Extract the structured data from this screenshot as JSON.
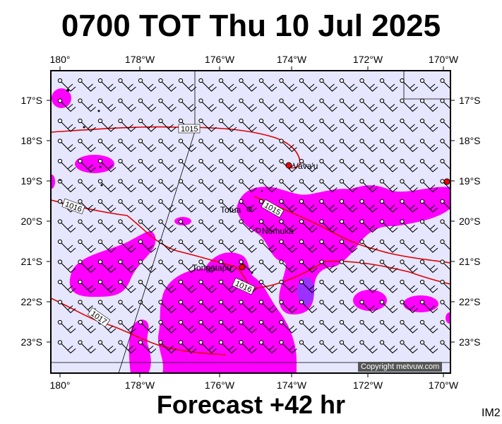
{
  "title": "0700 TOT Thu 10 Jul 2025",
  "subtitle": "Forecast +42 hr",
  "code": "IM2",
  "copyright": "Copyright metvuw.com",
  "lon_labels": [
    "180°",
    "178°W",
    "176°W",
    "174°W",
    "172°W",
    "170°W"
  ],
  "lat_labels": [
    "17°S",
    "18°S",
    "19°S",
    "20°S",
    "21°S",
    "22°S",
    "23°S"
  ],
  "places": [
    "Vava'u",
    "Tofua",
    "Nomuka",
    "Tongatapu"
  ],
  "isobars": [
    "1015",
    "1016",
    "1015",
    "1016",
    "1017"
  ],
  "colors": {
    "ocean": "#e6e6ff",
    "precip": "#ff00ff",
    "heavy_precip": "#9b30ff",
    "isobar": "#e00000"
  }
}
